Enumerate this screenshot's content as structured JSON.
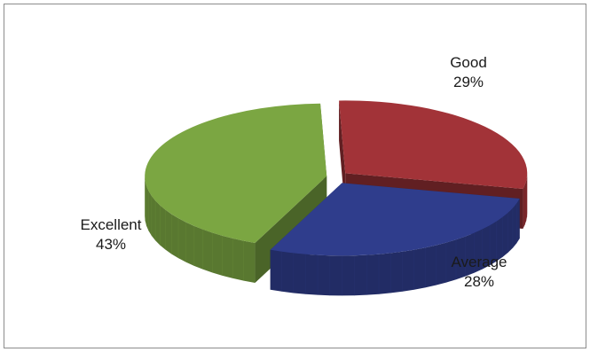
{
  "chart_data": {
    "type": "pie",
    "title": "",
    "categories": [
      "Good",
      "Average",
      "Excellent"
    ],
    "values": [
      29,
      28,
      43
    ],
    "percent_labels": [
      "29%",
      "28%",
      "43%"
    ],
    "colors": {
      "Good": "#a23338",
      "Average": "#2f3d8c",
      "Excellent": "#7ba642"
    },
    "legend": "none",
    "style": "3d-exploded"
  }
}
